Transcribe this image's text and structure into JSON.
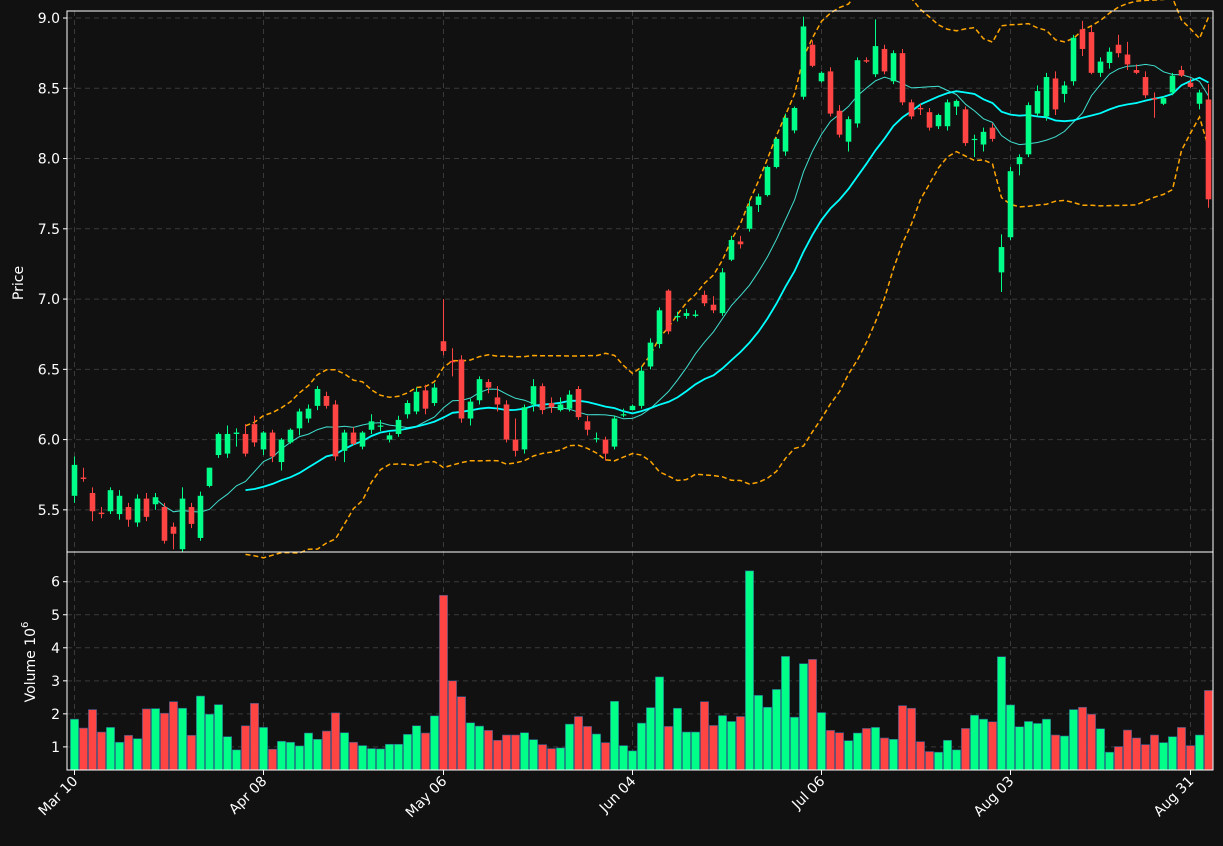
{
  "colors": {
    "background": "#111111",
    "up": "#00ff88",
    "down": "#ff4444",
    "ma_fast": "#40e0d0",
    "ma_slow": "#00ffff",
    "bollinger": "#ffa500",
    "grid": "#3a3a3a",
    "text": "#ffffff"
  },
  "chart_data": {
    "type": "candlestick",
    "ylabel_price": "Price",
    "ylabel_volume": "Volume",
    "volume_exponent_label": "10",
    "volume_exponent": "6",
    "price_ylim": [
      5.2,
      9.05
    ],
    "volume_ylim": [
      0.3,
      6.9
    ],
    "price_ticks": [
      "5.5",
      "6.0",
      "6.5",
      "7.0",
      "7.5",
      "8.0",
      "8.5",
      "9.0"
    ],
    "volume_ticks": [
      "1",
      "2",
      "3",
      "4",
      "5",
      "6"
    ],
    "x_ticks": [
      {
        "label": "Mar 10",
        "index": 0
      },
      {
        "label": "Apr 08",
        "index": 21
      },
      {
        "label": "May 06",
        "index": 41
      },
      {
        "label": "Jun 04",
        "index": 62
      },
      {
        "label": "Jul 06",
        "index": 83
      },
      {
        "label": "Aug 03",
        "index": 104
      },
      {
        "label": "Aug 31",
        "index": 124
      }
    ],
    "grid": true,
    "candles": [
      [
        5.6,
        5.88,
        5.55,
        5.82,
        1.84
      ],
      [
        5.73,
        5.8,
        5.7,
        5.72,
        1.57
      ],
      [
        5.62,
        5.66,
        5.42,
        5.49,
        2.13
      ],
      [
        5.48,
        5.52,
        5.44,
        5.47,
        1.45
      ],
      [
        5.49,
        5.66,
        5.47,
        5.64,
        1.59
      ],
      [
        5.47,
        5.64,
        5.43,
        5.6,
        1.14
      ],
      [
        5.52,
        5.55,
        5.38,
        5.43,
        1.35
      ],
      [
        5.41,
        5.61,
        5.38,
        5.58,
        1.25
      ],
      [
        5.58,
        5.62,
        5.42,
        5.45,
        2.15
      ],
      [
        5.54,
        5.62,
        5.5,
        5.59,
        2.16
      ],
      [
        5.52,
        5.55,
        5.26,
        5.28,
        2.02
      ],
      [
        5.38,
        5.41,
        5.22,
        5.33,
        2.37
      ],
      [
        5.22,
        5.66,
        5.2,
        5.58,
        2.17
      ],
      [
        5.52,
        5.55,
        5.37,
        5.4,
        1.35
      ],
      [
        5.3,
        5.63,
        5.28,
        5.6,
        2.54
      ],
      [
        5.67,
        5.8,
        5.66,
        5.8,
        1.99
      ],
      [
        5.89,
        6.05,
        5.87,
        6.04,
        2.28
      ],
      [
        5.9,
        6.1,
        5.87,
        6.04,
        1.31
      ],
      [
        6.04,
        6.08,
        5.95,
        6.05,
        0.91
      ],
      [
        6.04,
        6.11,
        5.88,
        5.9,
        1.64
      ],
      [
        6.11,
        6.17,
        5.95,
        5.98,
        2.32
      ],
      [
        5.93,
        6.06,
        5.89,
        6.05,
        1.59
      ],
      [
        6.05,
        6.07,
        5.84,
        5.88,
        0.93
      ],
      [
        5.84,
        6.01,
        5.78,
        6,
        1.17
      ],
      [
        5.98,
        6.08,
        5.97,
        6.07,
        1.14
      ],
      [
        6.08,
        6.22,
        6.03,
        6.2,
        1.03
      ],
      [
        6.15,
        6.25,
        6.12,
        6.22,
        1.42
      ],
      [
        6.24,
        6.38,
        6.21,
        6.36,
        1.23
      ],
      [
        6.31,
        6.34,
        6.22,
        6.24,
        1.48
      ],
      [
        6.25,
        6.28,
        5.85,
        5.88,
        2.03
      ],
      [
        5.92,
        6.07,
        5.84,
        6.05,
        1.43
      ],
      [
        6.05,
        6.09,
        5.96,
        5.97,
        1.14
      ],
      [
        5.95,
        6.06,
        5.93,
        6.05,
        1.04
      ],
      [
        6.07,
        6.18,
        6.04,
        6.13,
        0.95
      ],
      [
        6.1,
        6.14,
        6.06,
        6.1,
        0.94
      ],
      [
        6,
        6.05,
        5.98,
        6.03,
        1.08
      ],
      [
        6.04,
        6.17,
        6.02,
        6.14,
        1.08
      ],
      [
        6.18,
        6.28,
        6.15,
        6.26,
        1.38
      ],
      [
        6.2,
        6.37,
        6.18,
        6.34,
        1.64
      ],
      [
        6.35,
        6.39,
        6.18,
        6.22,
        1.42
      ],
      [
        6.26,
        6.4,
        6.24,
        6.37,
        1.94
      ],
      [
        6.7,
        7,
        6.6,
        6.63,
        5.59
      ],
      [
        6.56,
        6.65,
        6.45,
        6.55,
        3
      ],
      [
        6.57,
        6.6,
        6.12,
        6.15,
        2.52
      ],
      [
        6.15,
        6.29,
        6.1,
        6.27,
        1.73
      ],
      [
        6.28,
        6.45,
        6.25,
        6.43,
        1.63
      ],
      [
        6.41,
        6.43,
        6.33,
        6.37,
        1.5
      ],
      [
        6.3,
        6.38,
        6.2,
        6.25,
        1.2
      ],
      [
        6.25,
        6.28,
        5.98,
        6,
        1.36
      ],
      [
        6,
        6.15,
        5.88,
        5.92,
        1.36
      ],
      [
        5.93,
        6.25,
        5.9,
        6.23,
        1.43
      ],
      [
        6.25,
        6.43,
        6.2,
        6.38,
        1.22
      ],
      [
        6.38,
        6.4,
        6.18,
        6.21,
        1.07
      ],
      [
        6.26,
        6.3,
        6.19,
        6.23,
        0.95
      ],
      [
        6.21,
        6.3,
        6.2,
        6.25,
        0.97
      ],
      [
        6.22,
        6.35,
        6.2,
        6.32,
        1.69
      ],
      [
        6.36,
        6.38,
        6.14,
        6.16,
        1.92
      ],
      [
        6.13,
        6.17,
        6.03,
        6.07,
        1.62
      ],
      [
        6.01,
        6.05,
        5.98,
        6.01,
        1.39
      ],
      [
        6,
        6.02,
        5.85,
        5.9,
        1.13
      ],
      [
        5.95,
        6.17,
        5.93,
        6.15,
        2.38
      ],
      [
        6.18,
        6.22,
        6.16,
        6.18,
        1.04
      ],
      [
        6.21,
        6.25,
        6.21,
        6.24,
        0.88
      ],
      [
        6.24,
        6.52,
        6.22,
        6.49,
        1.72
      ],
      [
        6.52,
        6.72,
        6.5,
        6.69,
        2.19
      ],
      [
        6.68,
        6.94,
        6.65,
        6.92,
        3.12
      ],
      [
        7.06,
        7.07,
        6.75,
        6.77,
        1.62
      ],
      [
        6.87,
        6.91,
        6.84,
        6.88,
        2.17
      ],
      [
        6.88,
        6.93,
        6.86,
        6.9,
        1.45
      ],
      [
        6.88,
        6.92,
        6.87,
        6.89,
        1.45
      ],
      [
        7.03,
        7.06,
        6.95,
        6.97,
        2.37
      ],
      [
        6.96,
        7.02,
        6.9,
        6.92,
        1.65
      ],
      [
        6.9,
        7.22,
        6.88,
        7.19,
        1.95
      ],
      [
        7.28,
        7.45,
        7.27,
        7.42,
        1.77
      ],
      [
        7.41,
        7.45,
        7.36,
        7.39,
        1.92
      ],
      [
        7.5,
        7.7,
        7.48,
        7.66,
        6.33
      ],
      [
        7.67,
        7.75,
        7.62,
        7.73,
        2.56
      ],
      [
        7.74,
        7.95,
        7.73,
        7.94,
        2.2
      ],
      [
        7.94,
        8.15,
        7.93,
        8.14,
        2.74
      ],
      [
        8.05,
        8.32,
        8.02,
        8.29,
        3.74
      ],
      [
        8.2,
        8.37,
        8.18,
        8.36,
        1.9
      ],
      [
        8.44,
        9.01,
        8.42,
        8.94,
        3.52
      ],
      [
        8.81,
        8.84,
        8.65,
        8.66,
        3.65
      ],
      [
        8.55,
        8.62,
        8.54,
        8.61,
        2.04
      ],
      [
        8.62,
        8.65,
        8.3,
        8.32,
        1.5
      ],
      [
        8.34,
        8.38,
        8.15,
        8.17,
        1.43
      ],
      [
        8.12,
        8.3,
        8.05,
        8.28,
        1.19
      ],
      [
        8.25,
        8.72,
        8.22,
        8.7,
        1.42
      ],
      [
        8.7,
        8.72,
        8.68,
        8.69,
        1.56
      ],
      [
        8.6,
        8.99,
        8.58,
        8.8,
        1.59
      ],
      [
        8.78,
        8.81,
        8.6,
        8.62,
        1.27
      ],
      [
        8.55,
        8.77,
        8.53,
        8.75,
        1.23
      ],
      [
        8.75,
        8.78,
        8.38,
        8.4,
        2.25
      ],
      [
        8.4,
        8.42,
        8.28,
        8.3,
        2.17
      ],
      [
        8.36,
        8.39,
        8.31,
        8.35,
        1.16
      ],
      [
        8.33,
        8.36,
        8.2,
        8.22,
        0.86
      ],
      [
        8.23,
        8.32,
        8.21,
        8.31,
        0.84
      ],
      [
        8.23,
        8.42,
        8.2,
        8.4,
        1.2
      ],
      [
        8.37,
        8.42,
        8.31,
        8.41,
        0.91
      ],
      [
        8.35,
        8.37,
        8.09,
        8.11,
        1.56
      ],
      [
        8.14,
        8.17,
        8.01,
        8.14,
        1.96
      ],
      [
        8.1,
        8.22,
        8.05,
        8.19,
        1.84
      ],
      [
        8.22,
        8.25,
        8.12,
        8.14,
        1.76
      ],
      [
        7.19,
        7.46,
        7.05,
        7.37,
        3.73
      ],
      [
        7.44,
        7.94,
        7.42,
        7.91,
        2.27
      ],
      [
        7.96,
        8.03,
        7.88,
        8.01,
        1.61
      ],
      [
        8.03,
        8.4,
        8.01,
        8.38,
        1.77
      ],
      [
        8.32,
        8.52,
        8.3,
        8.48,
        1.71
      ],
      [
        8.3,
        8.61,
        8.27,
        8.58,
        1.84
      ],
      [
        8.57,
        8.62,
        8.31,
        8.35,
        1.36
      ],
      [
        8.46,
        8.55,
        8.4,
        8.52,
        1.33
      ],
      [
        8.55,
        8.88,
        8.52,
        8.86,
        2.13
      ],
      [
        8.92,
        8.98,
        8.73,
        8.78,
        2.2
      ],
      [
        8.9,
        8.94,
        8.6,
        8.61,
        1.99
      ],
      [
        8.61,
        8.72,
        8.58,
        8.69,
        1.55
      ],
      [
        8.68,
        8.79,
        8.64,
        8.76,
        0.84
      ],
      [
        8.81,
        8.88,
        8.72,
        8.75,
        1.01
      ],
      [
        8.74,
        8.83,
        8.63,
        8.67,
        1.51
      ],
      [
        8.63,
        8.67,
        8.6,
        8.61,
        1.27
      ],
      [
        8.58,
        8.62,
        8.43,
        8.45,
        1.07
      ],
      [
        8.43,
        8.47,
        8.29,
        8.42,
        1.36
      ],
      [
        8.39,
        8.44,
        8.38,
        8.43,
        1.13
      ],
      [
        8.47,
        8.61,
        8.45,
        8.59,
        1.31
      ],
      [
        8.63,
        8.66,
        8.58,
        8.59,
        1.59
      ],
      [
        8.54,
        8.57,
        8.5,
        8.51,
        1.04
      ],
      [
        8.39,
        8.49,
        8.35,
        8.47,
        1.36
      ],
      [
        8.42,
        8.53,
        7.65,
        7.71,
        2.71
      ]
    ]
  }
}
